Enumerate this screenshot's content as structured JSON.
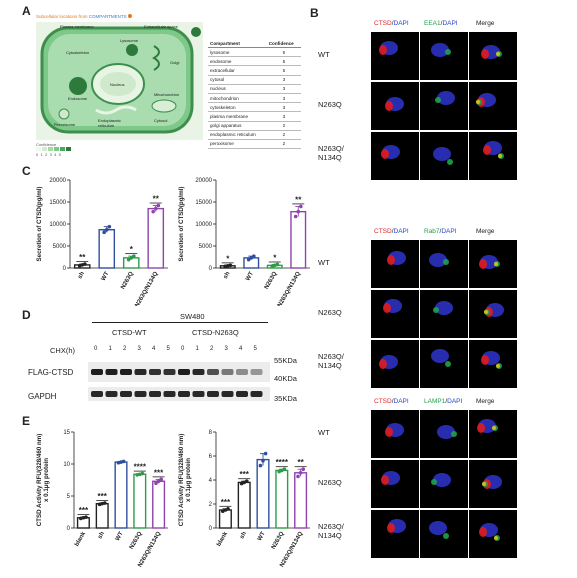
{
  "panels": {
    "A": "A",
    "B": "B",
    "C": "C",
    "D": "D",
    "E": "E"
  },
  "panelA": {
    "title_prefix": "Subcellular locations from",
    "title_source": "COMPARTMENTS",
    "organelles": [
      "Plasma membrane",
      "Extracellular space",
      "Lysosome",
      "Cytoskeleton",
      "Golgi",
      "Endosome",
      "Nucleus",
      "Mitochondrion",
      "Peroxisome",
      "Endoplasmic reticulum",
      "Cytosol"
    ],
    "legend_title": "Confidence",
    "legend_values": [
      "0",
      "1",
      "2",
      "3",
      "4",
      "5"
    ],
    "table_headers": [
      "Compartment",
      "Confidence"
    ],
    "table_rows": [
      {
        "compartment": "lysosome",
        "confidence": "5"
      },
      {
        "compartment": "endosome",
        "confidence": "5"
      },
      {
        "compartment": "extracellular",
        "confidence": "5"
      },
      {
        "compartment": "cytosol",
        "confidence": "3"
      },
      {
        "compartment": "nucleus",
        "confidence": "3"
      },
      {
        "compartment": "mitochondrion",
        "confidence": "3"
      },
      {
        "compartment": "cytoskeleton",
        "confidence": "3"
      },
      {
        "compartment": "plasma membrane",
        "confidence": "3"
      },
      {
        "compartment": "golgi apparatus",
        "confidence": "2"
      },
      {
        "compartment": "endoplasmic reticulum",
        "confidence": "2"
      },
      {
        "compartment": "peroxisome",
        "confidence": "2"
      }
    ]
  },
  "panelB": {
    "blocks": [
      {
        "stain1": "CTSD",
        "sep": "/",
        "dapi": "DAPI",
        "stain2": "EEA1",
        "merge": "Merge"
      },
      {
        "stain1": "CTSD",
        "sep": "/",
        "dapi": "DAPI",
        "stain2": "Rab7",
        "merge": "Merge"
      },
      {
        "stain1": "CTSD",
        "sep": "/",
        "dapi": "DAPI",
        "stain2": "LAMP1",
        "merge": "Merge"
      }
    ],
    "rows": [
      "WT",
      "N263Q",
      "N263Q/\nN134Q"
    ]
  },
  "chart_data": [
    {
      "type": "bar",
      "panel": "C-left",
      "ylabel": "Secretion of CTSD(pg/ml)",
      "ylim": [
        0,
        20000
      ],
      "yticks": [
        "0",
        "5000",
        "10000",
        "15000",
        "20000"
      ],
      "categories": [
        "sh",
        "WT",
        "N263Q",
        "N263Q/N134Q"
      ],
      "values": [
        700,
        8700,
        2300,
        13500
      ],
      "points": [
        [
          500,
          700,
          900
        ],
        [
          8100,
          8700,
          9400
        ],
        [
          1900,
          2300,
          2700
        ],
        [
          12800,
          13500,
          14200
        ]
      ],
      "colors": [
        "#222222",
        "#2f4f9e",
        "#2e9b4a",
        "#8e44ad"
      ],
      "significance": [
        "**",
        "",
        "*",
        "**"
      ]
    },
    {
      "type": "bar",
      "panel": "C-right",
      "ylabel": "Secretion of CTSD(pg/ml)",
      "ylim": [
        0,
        20000
      ],
      "yticks": [
        "0",
        "5000",
        "10000",
        "15000",
        "20000"
      ],
      "categories": [
        "sh",
        "WT",
        "N263Q",
        "N263Q/N134Q"
      ],
      "values": [
        500,
        2300,
        600,
        12800
      ],
      "points": [
        [
          400,
          500,
          600
        ],
        [
          1900,
          2300,
          2700
        ],
        [
          400,
          600,
          800
        ],
        [
          11700,
          12800,
          14000
        ]
      ],
      "colors": [
        "#222222",
        "#2f4f9e",
        "#2e9b4a",
        "#8e44ad"
      ],
      "significance": [
        "*",
        "",
        "*",
        "**"
      ]
    },
    {
      "type": "bar",
      "panel": "E-left",
      "ylabel": "CTSD Activity RFU(328/460 nm)\nx 0.1μg protein",
      "ylim": [
        0,
        15
      ],
      "yticks": [
        "0",
        "5",
        "10",
        "15"
      ],
      "categories": [
        "blank",
        "sh",
        "WT",
        "N263Q",
        "N263Q/N134Q"
      ],
      "values": [
        1.6,
        3.8,
        10.3,
        8.4,
        7.3
      ],
      "points": [
        [
          1.5,
          1.6,
          1.7
        ],
        [
          3.7,
          3.8,
          3.9
        ],
        [
          10.2,
          10.3,
          10.4
        ],
        [
          8.3,
          8.4,
          8.5
        ],
        [
          7.0,
          7.3,
          7.6
        ]
      ],
      "colors": [
        "#222222",
        "#222222",
        "#2f4f9e",
        "#2e9b4a",
        "#8e44ad"
      ],
      "significance": [
        "***",
        "***",
        "",
        "****",
        "***"
      ]
    },
    {
      "type": "bar",
      "panel": "E-right",
      "ylabel": "CTSD Activity RFU(328/460 nm)\nx 0.1μg protein",
      "ylim": [
        0,
        8
      ],
      "yticks": [
        "0",
        "2",
        "4",
        "6",
        "8"
      ],
      "categories": [
        "blank",
        "sh",
        "WT",
        "N263Q",
        "N263Q/N134Q"
      ],
      "values": [
        1.5,
        3.8,
        5.7,
        4.8,
        4.6
      ],
      "points": [
        [
          1.4,
          1.5,
          1.6
        ],
        [
          3.7,
          3.8,
          3.9
        ],
        [
          5.2,
          5.6,
          6.2
        ],
        [
          4.7,
          4.8,
          4.9
        ],
        [
          4.3,
          4.6,
          4.9
        ]
      ],
      "colors": [
        "#222222",
        "#222222",
        "#2f4f9e",
        "#2e9b4a",
        "#8e44ad"
      ],
      "significance": [
        "***",
        "***",
        "",
        "****",
        "**"
      ]
    }
  ],
  "panelD": {
    "cell_line": "SW480",
    "group1": "CTSD-WT",
    "group2": "CTSD-N263Q",
    "chx_label": "CHX(h)",
    "timepoints": [
      "0",
      "1",
      "2",
      "3",
      "4",
      "5",
      "0",
      "1",
      "2",
      "3",
      "4",
      "5"
    ],
    "band1_label": "FLAG-CTSD",
    "band2_label": "GAPDH",
    "mw_55": "55KDa",
    "mw_40": "40KDa",
    "mw_35": "35KDa",
    "band_intensity": [
      1,
      1,
      1,
      0.95,
      0.9,
      0.9,
      1,
      0.95,
      0.75,
      0.55,
      0.45,
      0.4
    ]
  }
}
